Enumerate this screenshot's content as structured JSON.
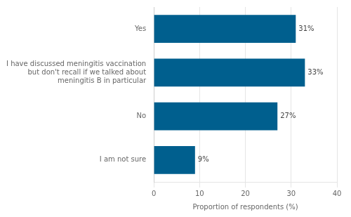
{
  "chart_data": {
    "type": "bar",
    "orientation": "horizontal",
    "categories": [
      "I am not sure",
      "No",
      "I have discussed meningitis vaccination\nbut don't recall if we talked about\nmeningitis B in particular",
      "Yes"
    ],
    "values": [
      9,
      27,
      33,
      31
    ],
    "value_labels": [
      "9%",
      "27%",
      "33%",
      "31%"
    ],
    "data_labels": true,
    "color": "#005f8e",
    "xlabel": "Proportion of respondents (%)",
    "xlim": [
      0,
      40
    ],
    "xticks": [
      0,
      10,
      20,
      30,
      40
    ],
    "grid": true
  }
}
